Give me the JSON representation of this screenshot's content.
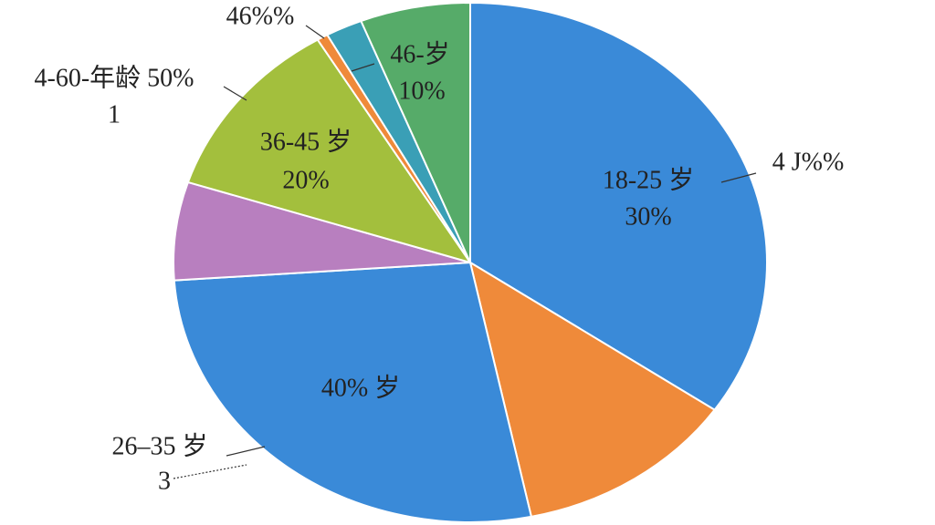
{
  "chart_data": {
    "type": "pie",
    "values": [
      34.6,
      12.1,
      27.2,
      6.1,
      11.4,
      0.6,
      2,
      6
    ],
    "colors": [
      "#3a8ad8",
      "#ef8a3a",
      "#3a8ad8",
      "#b87fbf",
      "#a3bf3d",
      "#ef8a3a",
      "#3a9fb6",
      "#56ab69"
    ],
    "annotations": [
      "18-25 岁",
      "30%",
      "4 J%%",
      "40% 岁",
      "26–35 岁",
      "3",
      "36-45 岁",
      "20%",
      "4-60-年龄 50%",
      "1",
      "46%%",
      "46-岁",
      "10%"
    ]
  }
}
